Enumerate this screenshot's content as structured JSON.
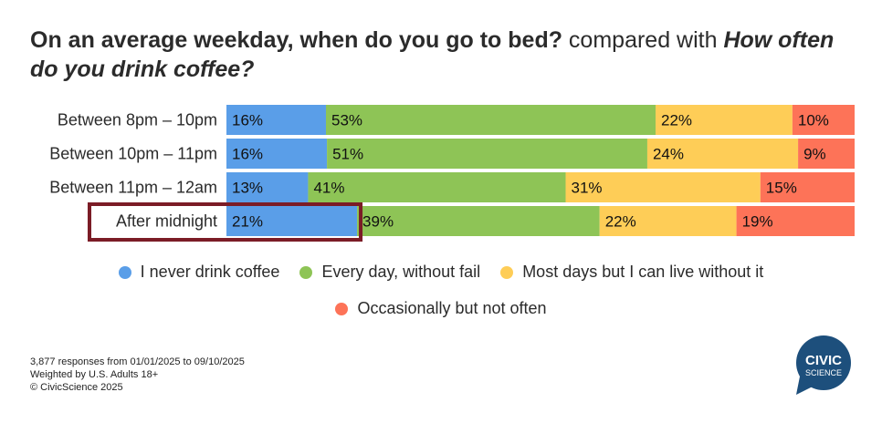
{
  "title": {
    "part1": "On an average weekday, when do you go to bed?",
    "part2": " compared with ",
    "part3": "How often do you drink coffee?"
  },
  "chart_data": {
    "type": "bar",
    "orientation": "horizontal",
    "stacked": true,
    "categories": [
      "Between 8pm – 10pm",
      "Between 10pm – 11pm",
      "Between 11pm – 12am",
      "After midnight"
    ],
    "series": [
      {
        "name": "I never drink coffee",
        "color": "#5a9ee8",
        "values": [
          16,
          16,
          13,
          21
        ],
        "labels": [
          "16%",
          "16%",
          "13%",
          "21%"
        ]
      },
      {
        "name": "Every day, without fail",
        "color": "#8ec456",
        "values": [
          53,
          51,
          41,
          39
        ],
        "labels": [
          "53%",
          "51%",
          "41%",
          "39%"
        ]
      },
      {
        "name": "Most days but I can live without it",
        "color": "#fecd57",
        "values": [
          22,
          24,
          31,
          22
        ],
        "labels": [
          "22%",
          "24%",
          "31%",
          "22%"
        ]
      },
      {
        "name": "Occasionally but not often",
        "color": "#fd7358",
        "values": [
          10,
          9,
          15,
          19
        ],
        "labels": [
          "10%",
          "9%",
          "15%",
          "19%"
        ]
      }
    ],
    "highlight": {
      "category_index": 3,
      "color": "#7b1c26"
    },
    "legend_position": "bottom",
    "grid": false
  },
  "footer": {
    "line1": "3,877 responses from 01/01/2025 to 09/10/2025",
    "line2": "Weighted by U.S. Adults 18+",
    "line3": "© CivicScience 2025"
  },
  "logo": {
    "line1": "CIVIC",
    "line2": "SCIENCE",
    "color": "#1d4f7c"
  }
}
